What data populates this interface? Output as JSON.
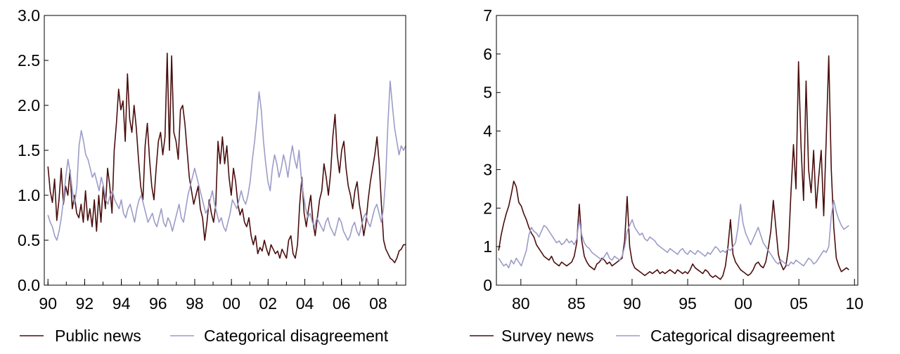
{
  "chart_data": [
    {
      "type": "line",
      "x_start": 1990.0,
      "x_end": 2009.5,
      "xlim": [
        1989.8,
        2009.5
      ],
      "ylim": [
        0.0,
        3.0
      ],
      "yticks": [
        0.0,
        0.5,
        1.0,
        1.5,
        2.0,
        2.5,
        3.0
      ],
      "ytick_labels": [
        "0.0",
        "0.5",
        "1.0",
        "1.5",
        "2.0",
        "2.5",
        "3.0"
      ],
      "xticks": [
        1990,
        1992,
        1994,
        1996,
        1998,
        2000,
        2002,
        2004,
        2006,
        2008
      ],
      "xtick_labels": [
        "90",
        "92",
        "94",
        "96",
        "98",
        "00",
        "02",
        "04",
        "06",
        "08"
      ],
      "minor_xticks": "yearly",
      "grid": false,
      "legend_position": "bottom",
      "series": [
        {
          "name": "Public news",
          "color": "#4a0e0e",
          "values": [
            1.32,
            1.05,
            0.92,
            1.18,
            0.72,
            0.95,
            1.3,
            0.9,
            1.1,
            1.0,
            1.28,
            0.85,
            1.0,
            0.8,
            0.75,
            0.9,
            0.7,
            1.05,
            0.72,
            0.85,
            0.65,
            0.95,
            0.6,
            1.0,
            0.7,
            1.1,
            0.85,
            1.3,
            1.1,
            0.8,
            1.5,
            1.8,
            2.18,
            1.95,
            2.05,
            1.6,
            2.35,
            1.85,
            1.7,
            2.0,
            1.75,
            1.4,
            1.1,
            0.95,
            1.55,
            1.8,
            1.4,
            1.1,
            0.95,
            1.3,
            1.6,
            1.7,
            1.45,
            1.65,
            2.58,
            1.5,
            2.55,
            1.7,
            1.6,
            1.4,
            1.95,
            2.0,
            1.8,
            1.5,
            1.2,
            1.05,
            0.9,
            1.0,
            1.1,
            0.85,
            0.75,
            0.5,
            0.7,
            0.95,
            0.8,
            0.7,
            0.9,
            1.6,
            1.35,
            1.65,
            1.35,
            1.55,
            1.2,
            1.0,
            1.3,
            1.15,
            0.9,
            0.78,
            0.85,
            0.7,
            0.65,
            0.75,
            0.55,
            0.45,
            0.55,
            0.35,
            0.42,
            0.38,
            0.5,
            0.4,
            0.33,
            0.45,
            0.4,
            0.35,
            0.38,
            0.3,
            0.4,
            0.35,
            0.3,
            0.5,
            0.55,
            0.35,
            0.3,
            0.45,
            0.9,
            1.2,
            0.8,
            0.65,
            0.85,
            1.0,
            0.7,
            0.55,
            0.75,
            0.95,
            1.05,
            1.35,
            1.2,
            1.0,
            1.25,
            1.65,
            1.9,
            1.45,
            1.25,
            1.5,
            1.6,
            1.3,
            1.1,
            1.0,
            0.85,
            1.05,
            1.15,
            0.9,
            0.75,
            0.55,
            0.7,
            0.95,
            1.15,
            1.3,
            1.45,
            1.65,
            1.35,
            0.9,
            0.5,
            0.4,
            0.35,
            0.3,
            0.28,
            0.25,
            0.3,
            0.38,
            0.4,
            0.45,
            0.45
          ]
        },
        {
          "name": "Categorical disagreement",
          "color": "#9c9cc8",
          "values": [
            0.78,
            0.7,
            0.65,
            0.55,
            0.5,
            0.6,
            0.75,
            0.95,
            1.2,
            1.4,
            1.25,
            1.05,
            0.9,
            1.1,
            1.55,
            1.72,
            1.6,
            1.45,
            1.4,
            1.3,
            1.2,
            1.25,
            1.15,
            1.05,
            1.2,
            1.1,
            0.95,
            0.9,
            1.0,
            1.05,
            0.95,
            0.9,
            0.85,
            0.95,
            0.8,
            0.75,
            0.85,
            0.9,
            0.8,
            0.7,
            0.85,
            0.95,
            1.0,
            0.9,
            0.8,
            0.7,
            0.75,
            0.8,
            0.7,
            0.65,
            0.75,
            0.85,
            0.7,
            0.65,
            0.75,
            0.7,
            0.6,
            0.7,
            0.8,
            0.9,
            0.75,
            0.7,
            0.85,
            1.0,
            1.1,
            1.2,
            1.3,
            1.2,
            1.1,
            1.0,
            0.9,
            0.8,
            0.85,
            0.95,
            1.05,
            0.9,
            0.8,
            0.7,
            0.75,
            0.65,
            0.6,
            0.7,
            0.8,
            0.95,
            0.9,
            0.85,
            0.95,
            1.05,
            0.95,
            0.9,
            1.0,
            1.15,
            1.4,
            1.6,
            1.85,
            2.15,
            1.95,
            1.6,
            1.35,
            1.15,
            1.05,
            1.3,
            1.45,
            1.35,
            1.2,
            1.3,
            1.45,
            1.35,
            1.2,
            1.4,
            1.55,
            1.4,
            1.3,
            1.5,
            1.2,
            1.0,
            0.85,
            0.75,
            0.8,
            0.7,
            0.65,
            0.75,
            0.7,
            0.65,
            0.6,
            0.7,
            0.75,
            0.65,
            0.6,
            0.55,
            0.65,
            0.75,
            0.7,
            0.6,
            0.55,
            0.5,
            0.55,
            0.65,
            0.7,
            0.6,
            0.55,
            0.65,
            0.75,
            0.8,
            0.7,
            0.65,
            0.75,
            0.85,
            0.9,
            0.8,
            0.7,
            0.85,
            1.2,
            1.8,
            2.27,
            2.0,
            1.75,
            1.6,
            1.45,
            1.55,
            1.5,
            1.55
          ]
        }
      ]
    },
    {
      "type": "line",
      "x_start": 1978.0,
      "x_end": 2009.5,
      "xlim": [
        1977.8,
        2010.3
      ],
      "ylim": [
        0,
        7
      ],
      "yticks": [
        0,
        1,
        2,
        3,
        4,
        5,
        6,
        7
      ],
      "ytick_labels": [
        "0",
        "1",
        "2",
        "3",
        "4",
        "5",
        "6",
        "7"
      ],
      "xticks": [
        1980,
        1985,
        1990,
        1995,
        2000,
        2005,
        2010
      ],
      "xtick_labels": [
        "80",
        "85",
        "90",
        "95",
        "00",
        "05",
        "10"
      ],
      "minor_xticks": "none",
      "grid": false,
      "legend_position": "bottom",
      "series": [
        {
          "name": "Survey news",
          "color": "#4a0e0e",
          "values": [
            0.9,
            1.3,
            1.6,
            1.85,
            2.05,
            2.35,
            2.7,
            2.55,
            2.15,
            2.05,
            1.85,
            1.7,
            1.5,
            1.35,
            1.25,
            1.05,
            0.95,
            0.85,
            0.75,
            0.7,
            0.65,
            0.75,
            0.6,
            0.55,
            0.5,
            0.6,
            0.55,
            0.5,
            0.55,
            0.6,
            0.75,
            1.1,
            2.1,
            1.15,
            0.75,
            0.6,
            0.5,
            0.45,
            0.4,
            0.55,
            0.6,
            0.7,
            0.65,
            0.55,
            0.6,
            0.5,
            0.55,
            0.6,
            0.65,
            0.7,
            1.15,
            2.3,
            1.0,
            0.6,
            0.45,
            0.4,
            0.35,
            0.3,
            0.25,
            0.3,
            0.35,
            0.3,
            0.35,
            0.4,
            0.3,
            0.35,
            0.3,
            0.35,
            0.4,
            0.35,
            0.3,
            0.4,
            0.35,
            0.3,
            0.35,
            0.3,
            0.4,
            0.55,
            0.45,
            0.4,
            0.35,
            0.3,
            0.4,
            0.35,
            0.25,
            0.2,
            0.25,
            0.2,
            0.15,
            0.25,
            0.5,
            1.0,
            1.7,
            0.8,
            0.6,
            0.5,
            0.4,
            0.35,
            0.3,
            0.25,
            0.3,
            0.4,
            0.55,
            0.6,
            0.5,
            0.45,
            0.6,
            0.95,
            1.4,
            2.2,
            1.5,
            0.8,
            0.55,
            0.4,
            0.5,
            0.95,
            2.4,
            3.65,
            2.5,
            5.8,
            3.6,
            2.2,
            5.3,
            3.0,
            2.4,
            3.5,
            2.0,
            2.8,
            3.5,
            1.8,
            3.8,
            5.95,
            3.0,
            1.5,
            0.7,
            0.5,
            0.35,
            0.4,
            0.45,
            0.4
          ]
        },
        {
          "name": "Categorical disagreement",
          "color": "#9c9cc8",
          "values": [
            0.7,
            0.6,
            0.5,
            0.55,
            0.45,
            0.65,
            0.55,
            0.7,
            0.6,
            0.5,
            0.7,
            0.9,
            1.3,
            1.5,
            1.4,
            1.35,
            1.25,
            1.4,
            1.55,
            1.5,
            1.4,
            1.3,
            1.2,
            1.1,
            1.15,
            1.05,
            1.1,
            1.2,
            1.1,
            1.15,
            1.05,
            1.2,
            1.7,
            1.3,
            1.1,
            1.0,
            0.95,
            0.85,
            0.8,
            0.75,
            0.7,
            0.65,
            0.75,
            0.85,
            0.7,
            0.65,
            0.75,
            0.7,
            0.65,
            0.75,
            1.0,
            1.4,
            1.55,
            1.7,
            1.5,
            1.4,
            1.3,
            1.35,
            1.2,
            1.15,
            1.25,
            1.2,
            1.15,
            1.05,
            1.0,
            0.95,
            0.9,
            0.85,
            0.95,
            0.9,
            0.85,
            0.8,
            0.9,
            0.95,
            0.85,
            0.8,
            0.9,
            0.85,
            0.8,
            0.9,
            0.85,
            0.8,
            0.75,
            0.85,
            0.8,
            0.9,
            1.0,
            0.95,
            0.85,
            0.9,
            0.85,
            0.95,
            0.9,
            1.0,
            1.1,
            1.5,
            2.1,
            1.6,
            1.35,
            1.2,
            1.05,
            1.2,
            1.35,
            1.5,
            1.3,
            1.1,
            1.0,
            0.9,
            0.8,
            0.7,
            0.6,
            0.55,
            0.65,
            0.6,
            0.55,
            0.5,
            0.6,
            0.55,
            0.65,
            0.6,
            0.55,
            0.5,
            0.6,
            0.7,
            0.65,
            0.55,
            0.6,
            0.7,
            0.8,
            0.9,
            0.85,
            1.0,
            1.8,
            2.2,
            1.9,
            1.7,
            1.55,
            1.45,
            1.5,
            1.55
          ]
        }
      ]
    }
  ]
}
